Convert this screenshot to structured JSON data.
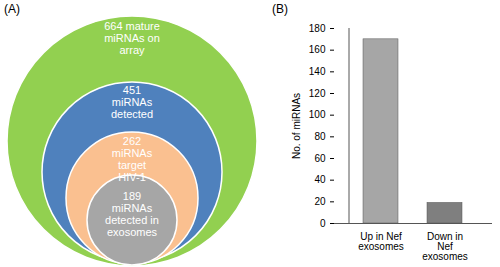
{
  "panels": [
    "(A)",
    "(B)"
  ],
  "diagram": {
    "circles": [
      {
        "lines": [
          "664 mature",
          "miRNAs on",
          "array"
        ],
        "color": "#92d050"
      },
      {
        "lines": [
          "451",
          "miRNAs",
          "detected"
        ],
        "color": "#4f81bd"
      },
      {
        "lines": [
          "262",
          "miRNAs",
          "target",
          "HIV-1"
        ],
        "color": "#fac090"
      },
      {
        "lines": [
          "189",
          "miRNAs",
          "detected in",
          "exosomes"
        ],
        "color": "#a6a6a6"
      }
    ]
  },
  "chart_data": {
    "type": "bar",
    "categories": [
      "Up in Nef exosomes",
      "Down in Nef exosomes"
    ],
    "values": [
      170,
      19
    ],
    "colors": [
      "#a6a6a6",
      "#7f7f7f"
    ],
    "y_label": "No. of miRNAs",
    "ylim": [
      0,
      180
    ],
    "yticks": [
      0,
      20,
      40,
      60,
      80,
      100,
      120,
      140,
      160,
      180
    ],
    "grid": false
  }
}
